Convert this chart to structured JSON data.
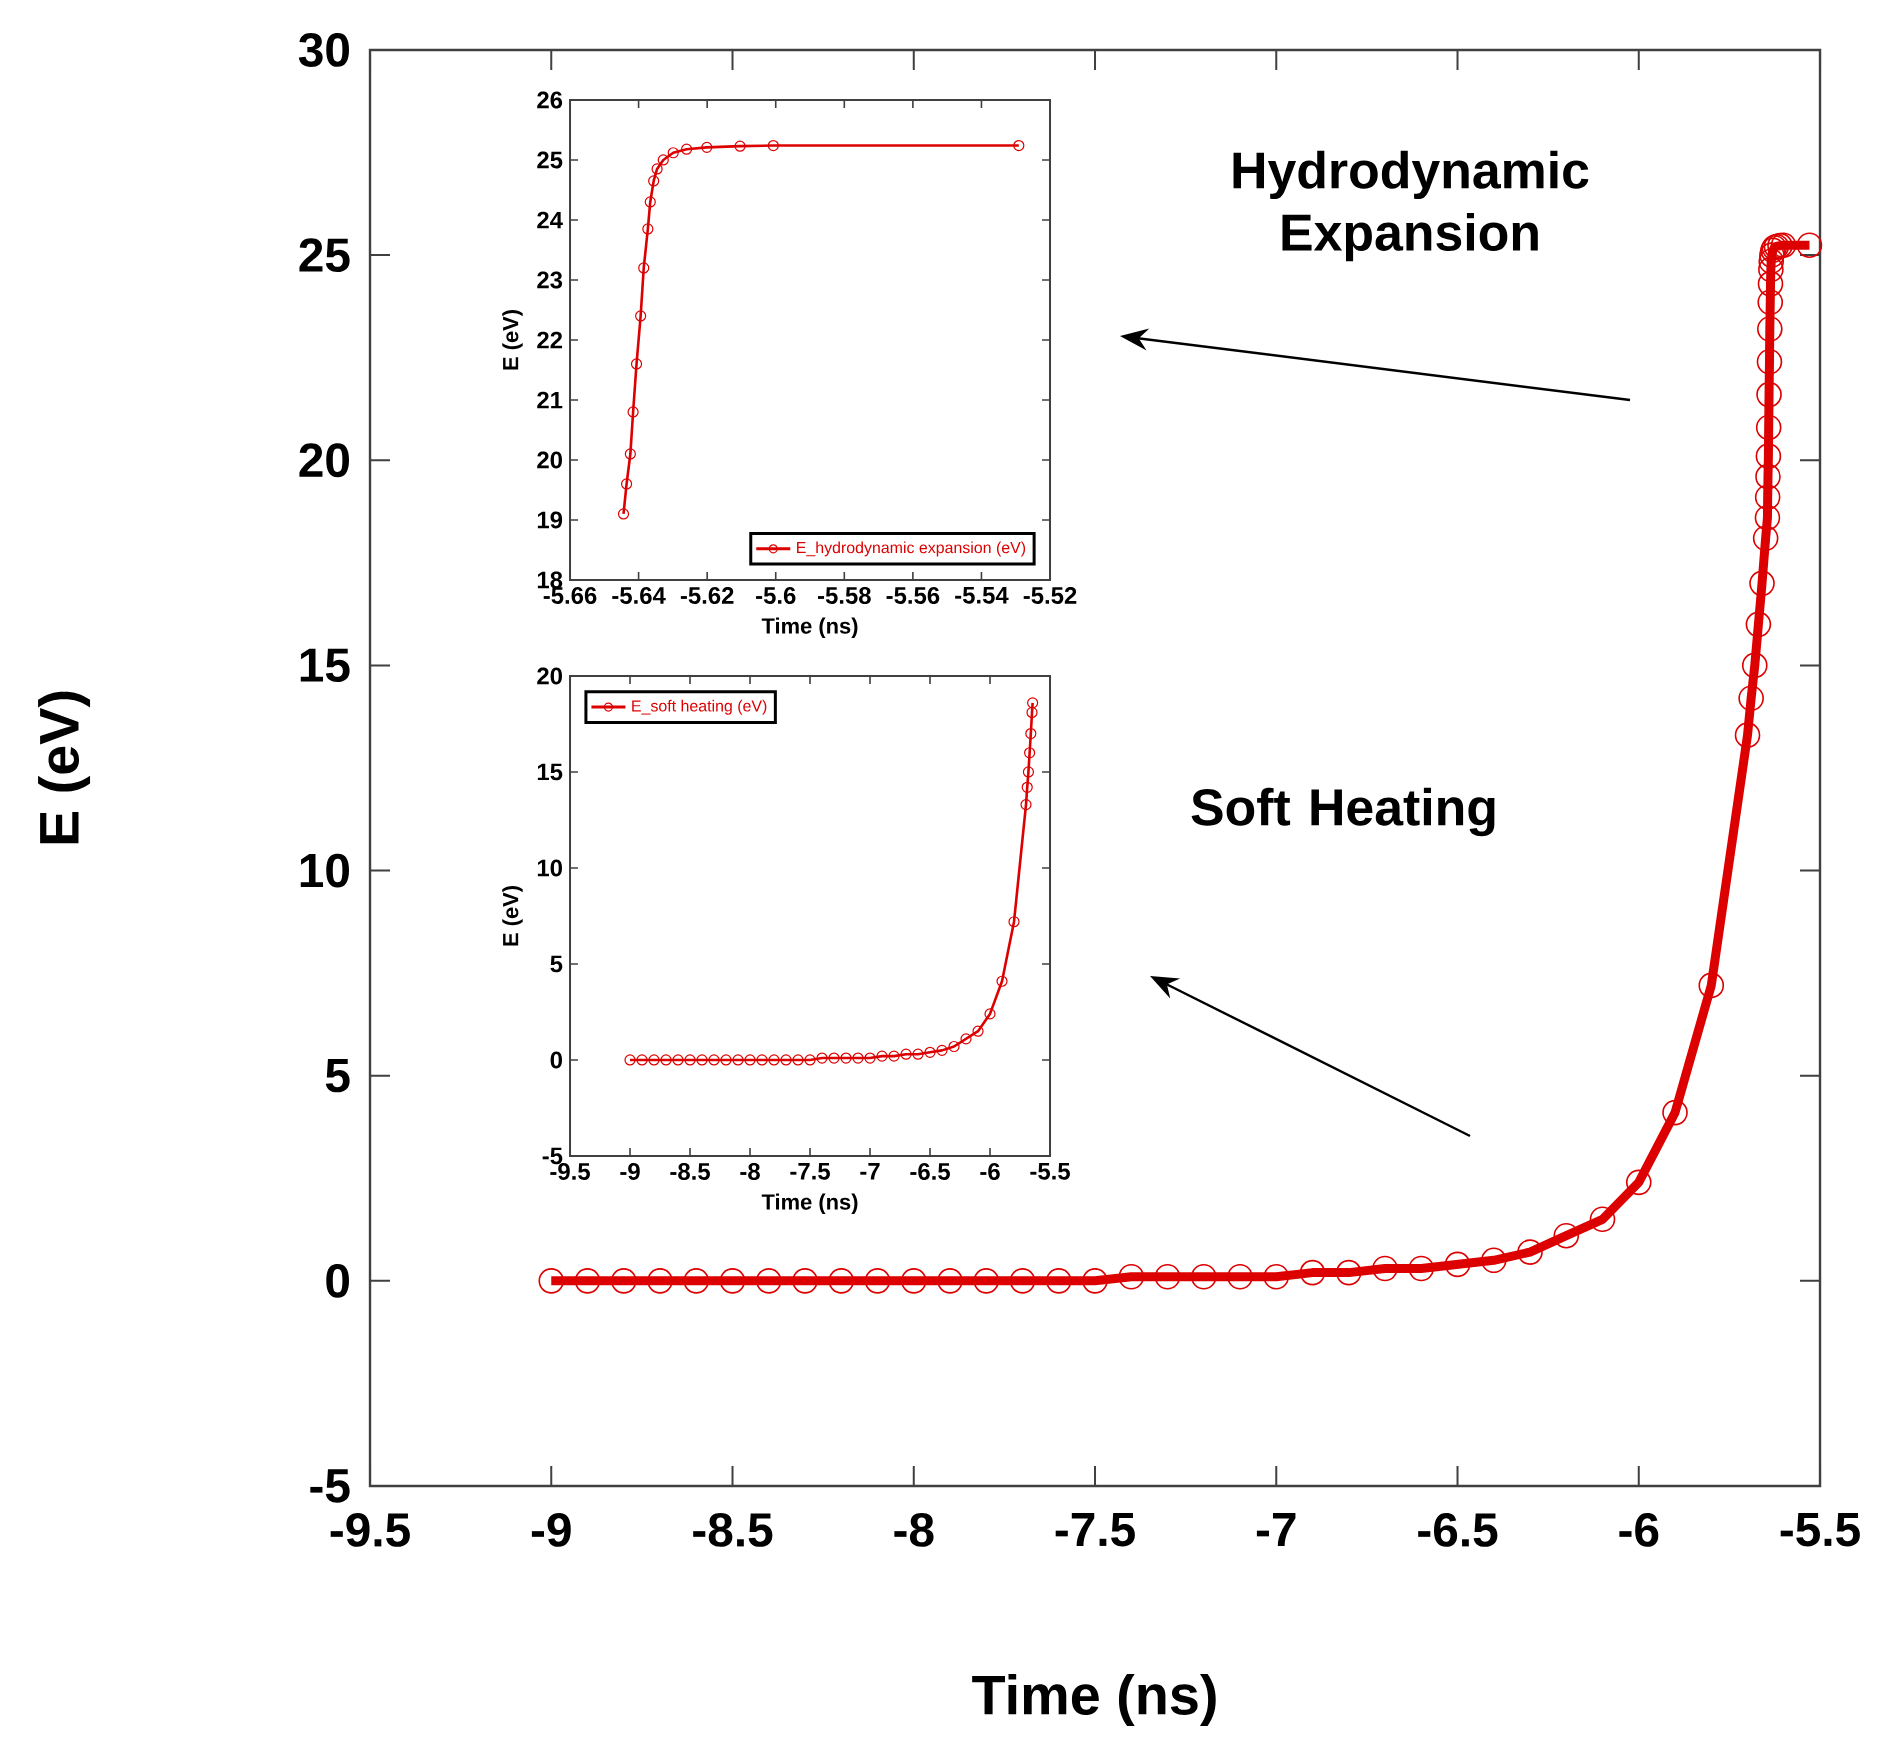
{
  "chart_data": [
    {
      "type": "line",
      "xlabel": "Time (ns)",
      "ylabel": "E (eV)",
      "marker": "circle",
      "line_style": "solid",
      "annotations": [
        "Hydrodynamic Expansion",
        "Soft Heating"
      ],
      "xlim": [
        -9.5,
        -5.5
      ],
      "ylim": [
        -5,
        30
      ],
      "xticks": [
        -9.5,
        -9,
        -8.5,
        -8,
        -7.5,
        -7,
        -6.5,
        -6,
        -5.5
      ],
      "yticks": [
        -5,
        0,
        5,
        10,
        15,
        20,
        25,
        30
      ],
      "series": [
        {
          "color": "#dd0000",
          "x": [
            -9,
            -8.9,
            -8.8,
            -8.7,
            -8.6,
            -8.5,
            -8.4,
            -8.3,
            -8.2,
            -8.1,
            -8,
            -7.9,
            -7.8,
            -7.7,
            -7.6,
            -7.5,
            -7.4,
            -7.3,
            -7.2,
            -7.1,
            -7,
            -6.9,
            -6.8,
            -6.7,
            -6.6,
            -6.5,
            -6.4,
            -6.3,
            -6.2,
            -6.1,
            -6,
            -5.9,
            -5.8,
            -5.7,
            -5.69,
            -5.68,
            -5.67,
            -5.66,
            -5.65,
            -5.645,
            -5.6444,
            -5.6435,
            -5.6424,
            -5.6416,
            -5.6406,
            -5.6394,
            -5.6385,
            -5.6373,
            -5.6366,
            -5.6356,
            -5.6346,
            -5.6328,
            -5.6299,
            -5.626,
            -5.6201,
            -5.6104,
            -5.6007,
            -5.5291
          ],
          "values": [
            0,
            0,
            0,
            0,
            0,
            0,
            0,
            0,
            0,
            0,
            0,
            0,
            0,
            0,
            0,
            0,
            0.1,
            0.1,
            0.1,
            0.1,
            0.1,
            0.2,
            0.2,
            0.3,
            0.3,
            0.4,
            0.5,
            0.7,
            1.1,
            1.5,
            2.4,
            4.1,
            7.2,
            13.3,
            14.2,
            15.0,
            16.0,
            17.0,
            18.1,
            18.6,
            19.1,
            19.6,
            20.1,
            20.8,
            21.6,
            22.4,
            23.2,
            23.85,
            24.3,
            24.65,
            24.85,
            25.0,
            25.12,
            25.18,
            25.21,
            25.23,
            25.24,
            25.24
          ]
        }
      ]
    },
    {
      "type": "line",
      "xlabel": "Time (ns)",
      "ylabel": "E (eV)",
      "marker": "circle",
      "line_style": "solid",
      "legend": "bottom right",
      "xlim": [
        -5.66,
        -5.52
      ],
      "ylim": [
        18,
        26
      ],
      "xticks": [
        -5.66,
        -5.64,
        -5.62,
        -5.6,
        -5.58,
        -5.56,
        -5.54,
        -5.52
      ],
      "yticks": [
        18,
        19,
        20,
        21,
        22,
        23,
        24,
        25,
        26
      ],
      "series": [
        {
          "name": "E_hydrodynamic expansion (eV)",
          "color": "#dd0000",
          "x": [
            -5.6444,
            -5.6435,
            -5.6424,
            -5.6416,
            -5.6406,
            -5.6394,
            -5.6385,
            -5.6373,
            -5.6366,
            -5.6356,
            -5.6346,
            -5.6328,
            -5.6299,
            -5.626,
            -5.6201,
            -5.6104,
            -5.6007,
            -5.5291
          ],
          "values": [
            19.1,
            19.6,
            20.1,
            20.8,
            21.6,
            22.4,
            23.2,
            23.85,
            24.3,
            24.65,
            24.85,
            25.0,
            25.12,
            25.18,
            25.21,
            25.23,
            25.24,
            25.24
          ]
        }
      ]
    },
    {
      "type": "line",
      "xlabel": "Time (ns)",
      "ylabel": "E (eV)",
      "marker": "circle",
      "line_style": "solid",
      "legend": "top left",
      "xlim": [
        -9.5,
        -5.5
      ],
      "ylim": [
        -5,
        20
      ],
      "xticks": [
        -9.5,
        -9,
        -8.5,
        -8,
        -7.5,
        -7,
        -6.5,
        -6,
        -5.5
      ],
      "yticks": [
        -5,
        0,
        5,
        10,
        15,
        20
      ],
      "series": [
        {
          "name": "E_soft heating (eV)",
          "color": "#dd0000",
          "x": [
            -9,
            -8.9,
            -8.8,
            -8.7,
            -8.6,
            -8.5,
            -8.4,
            -8.3,
            -8.2,
            -8.1,
            -8,
            -7.9,
            -7.8,
            -7.7,
            -7.6,
            -7.5,
            -7.4,
            -7.3,
            -7.2,
            -7.1,
            -7,
            -6.9,
            -6.8,
            -6.7,
            -6.6,
            -6.5,
            -6.4,
            -6.3,
            -6.2,
            -6.1,
            -6,
            -5.9,
            -5.8,
            -5.7,
            -5.69,
            -5.68,
            -5.67,
            -5.66,
            -5.65,
            -5.645
          ],
          "values": [
            0,
            0,
            0,
            0,
            0,
            0,
            0,
            0,
            0,
            0,
            0,
            0,
            0,
            0,
            0,
            0,
            0.1,
            0.1,
            0.1,
            0.1,
            0.1,
            0.2,
            0.2,
            0.3,
            0.3,
            0.4,
            0.5,
            0.7,
            1.1,
            1.5,
            2.4,
            4.1,
            7.2,
            13.3,
            14.2,
            15.0,
            16.0,
            17.0,
            18.1,
            18.6
          ]
        }
      ]
    }
  ]
}
